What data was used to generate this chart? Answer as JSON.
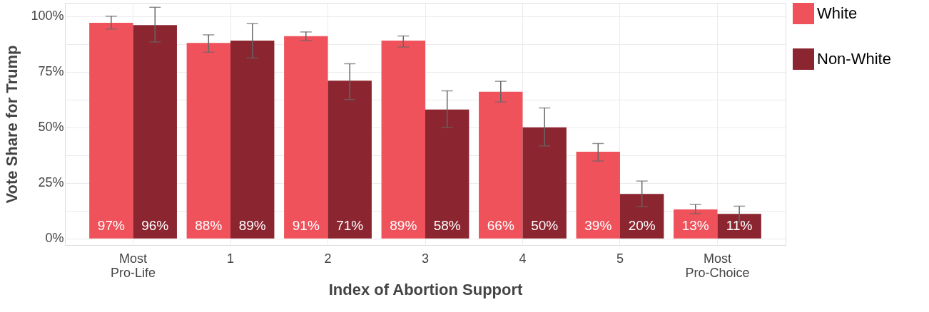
{
  "chart_data": {
    "type": "bar",
    "xlabel": "Index of Abortion Support",
    "ylabel": "Vote Share for Trump",
    "categories": [
      "Most\nPro-Life",
      "1",
      "2",
      "3",
      "4",
      "5",
      "Most\nPro-Choice"
    ],
    "series": [
      {
        "name": "White",
        "color": "#ef525b",
        "values": [
          97,
          88,
          91,
          89,
          66,
          39,
          13
        ],
        "value_labels": [
          "97%",
          "88%",
          "91%",
          "89%",
          "66%",
          "39%",
          "13%"
        ],
        "errors": [
          [
            94.2,
            100.0
          ],
          [
            83.8,
            91.6
          ],
          [
            89.1,
            92.9
          ],
          [
            86.1,
            91.1
          ],
          [
            61.4,
            70.7
          ],
          [
            34.8,
            42.7
          ],
          [
            11.1,
            15.3
          ]
        ]
      },
      {
        "name": "Non-White",
        "color": "#8b2630",
        "values": [
          96,
          89,
          71,
          58,
          50,
          20,
          11
        ],
        "value_labels": [
          "96%",
          "89%",
          "71%",
          "58%",
          "50%",
          "20%",
          "11%"
        ],
        "errors": [
          [
            88.4,
            104.0
          ],
          [
            81.2,
            96.7
          ],
          [
            62.5,
            78.6
          ],
          [
            49.9,
            66.4
          ],
          [
            41.6,
            58.7
          ],
          [
            14.3,
            25.8
          ],
          [
            7.3,
            14.5
          ]
        ]
      }
    ],
    "ylim": [
      -3,
      106
    ],
    "yticks": [
      {
        "value": 0,
        "label": "0%"
      },
      {
        "value": 12.5,
        "label": null
      },
      {
        "value": 25,
        "label": "25%"
      },
      {
        "value": 37.5,
        "label": null
      },
      {
        "value": 50,
        "label": "50%"
      },
      {
        "value": 62.5,
        "label": null
      },
      {
        "value": 75,
        "label": "75%"
      },
      {
        "value": 87.5,
        "label": null
      },
      {
        "value": 100,
        "label": "100%"
      }
    ],
    "grid": true,
    "legend": "right"
  }
}
